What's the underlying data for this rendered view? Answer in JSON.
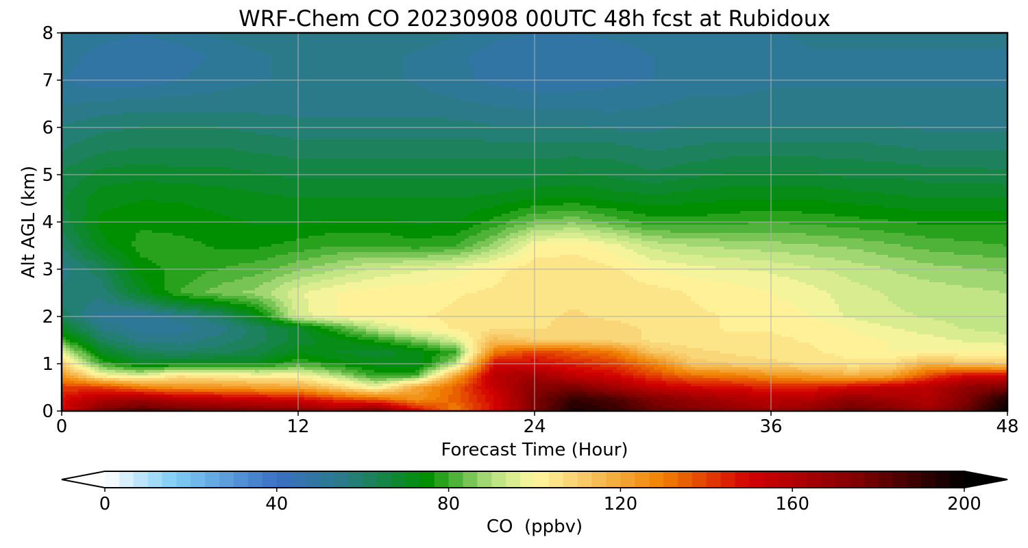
{
  "chart_data": {
    "type": "heatmap",
    "title": "WRF-Chem CO  20230908 00UTC 48h fcst at Rubidoux",
    "xlabel": "Forecast Time (Hour)",
    "ylabel": "Alt AGL (km)",
    "xlim": [
      0,
      48
    ],
    "ylim": [
      0,
      8
    ],
    "xticks": [
      0,
      12,
      24,
      36,
      48
    ],
    "yticks": [
      0,
      1,
      2,
      3,
      4,
      5,
      6,
      7,
      8
    ],
    "grid": true,
    "colorbar": {
      "label": "CO  (ppbv)",
      "range": [
        0,
        200
      ],
      "ticks": [
        0,
        40,
        80,
        120,
        160,
        200
      ],
      "extend": "both",
      "orientation": "horizontal",
      "stops": [
        {
          "v": 0,
          "c": "#ffffff"
        },
        {
          "v": 16,
          "c": "#7fcef5"
        },
        {
          "v": 40,
          "c": "#3a6fc4"
        },
        {
          "v": 55,
          "c": "#2a7a8a"
        },
        {
          "v": 75,
          "c": "#008f00"
        },
        {
          "v": 90,
          "c": "#b4e080"
        },
        {
          "v": 100,
          "c": "#fff8a0"
        },
        {
          "v": 110,
          "c": "#f8d070"
        },
        {
          "v": 130,
          "c": "#f08000"
        },
        {
          "v": 150,
          "c": "#d40000"
        },
        {
          "v": 175,
          "c": "#800000"
        },
        {
          "v": 200,
          "c": "#000000"
        }
      ]
    },
    "times": [
      0,
      2,
      4,
      6,
      8,
      10,
      12,
      14,
      16,
      18,
      20,
      22,
      24,
      26,
      28,
      30,
      32,
      34,
      36,
      38,
      40,
      42,
      44,
      46,
      48
    ],
    "altitudes": [
      0,
      0.25,
      0.5,
      0.75,
      1.0,
      1.25,
      1.5,
      1.75,
      2.0,
      2.5,
      3.0,
      3.5,
      4.0,
      4.5,
      5.0,
      5.5,
      6.0,
      6.5,
      7.0,
      7.5,
      8.0
    ],
    "values": [
      [
        150,
        175,
        185,
        180,
        178,
        175,
        172,
        168,
        175,
        150,
        130,
        150,
        175,
        195,
        190,
        180,
        175,
        170,
        165,
        170,
        180,
        175,
        165,
        180,
        200
      ],
      [
        148,
        160,
        165,
        158,
        155,
        152,
        150,
        140,
        135,
        125,
        135,
        150,
        175,
        190,
        185,
        175,
        168,
        162,
        158,
        160,
        170,
        165,
        160,
        175,
        195
      ],
      [
        140,
        140,
        130,
        125,
        125,
        122,
        120,
        110,
        98,
        120,
        135,
        155,
        172,
        175,
        165,
        155,
        150,
        148,
        145,
        145,
        150,
        155,
        158,
        170,
        175
      ],
      [
        125,
        100,
        95,
        105,
        102,
        100,
        100,
        90,
        78,
        80,
        120,
        158,
        165,
        155,
        150,
        140,
        132,
        130,
        125,
        122,
        118,
        120,
        138,
        150,
        150
      ],
      [
        110,
        80,
        70,
        72,
        72,
        72,
        80,
        75,
        72,
        70,
        90,
        150,
        150,
        145,
        140,
        130,
        112,
        110,
        108,
        106,
        104,
        105,
        118,
        112,
        110
      ],
      [
        95,
        70,
        62,
        60,
        62,
        65,
        72,
        70,
        68,
        72,
        80,
        130,
        140,
        135,
        130,
        112,
        108,
        106,
        104,
        104,
        102,
        100,
        100,
        100,
        100
      ],
      [
        80,
        62,
        55,
        55,
        58,
        62,
        68,
        72,
        78,
        85,
        95,
        115,
        110,
        110,
        108,
        106,
        104,
        104,
        104,
        103,
        101,
        100,
        98,
        96,
        95
      ],
      [
        70,
        56,
        52,
        52,
        55,
        62,
        68,
        80,
        92,
        100,
        104,
        106,
        106,
        108,
        108,
        106,
        104,
        103,
        103,
        102,
        100,
        97,
        95,
        93,
        92
      ],
      [
        62,
        52,
        50,
        55,
        60,
        72,
        95,
        100,
        102,
        103,
        104,
        105,
        106,
        107,
        106,
        105,
        104,
        103,
        102,
        100,
        96,
        94,
        93,
        92,
        91
      ],
      [
        58,
        58,
        70,
        80,
        85,
        88,
        96,
        100,
        102,
        102,
        103,
        104,
        106,
        106,
        106,
        105,
        103,
        102,
        100,
        98,
        95,
        93,
        92,
        91,
        90
      ],
      [
        55,
        62,
        75,
        78,
        80,
        82,
        86,
        90,
        94,
        96,
        98,
        102,
        106,
        106,
        104,
        100,
        98,
        97,
        96,
        94,
        92,
        90,
        88,
        87,
        86
      ],
      [
        60,
        72,
        78,
        78,
        76,
        76,
        78,
        80,
        80,
        78,
        80,
        88,
        100,
        102,
        98,
        92,
        90,
        89,
        88,
        87,
        86,
        84,
        82,
        81,
        80
      ],
      [
        65,
        74,
        76,
        75,
        74,
        73,
        73,
        74,
        74,
        73,
        73,
        78,
        84,
        86,
        82,
        78,
        78,
        79,
        80,
        79,
        78,
        77,
        76,
        76,
        76
      ],
      [
        66,
        72,
        73,
        73,
        72,
        71,
        70,
        70,
        70,
        70,
        70,
        71,
        73,
        74,
        72,
        71,
        72,
        73,
        73,
        73,
        72,
        71,
        70,
        70,
        70
      ],
      [
        64,
        68,
        69,
        68,
        68,
        67,
        66,
        66,
        66,
        66,
        66,
        66,
        66,
        67,
        66,
        64,
        66,
        67,
        67,
        67,
        66,
        66,
        65,
        65,
        64
      ],
      [
        60,
        63,
        64,
        64,
        64,
        63,
        62,
        62,
        62,
        62,
        62,
        62,
        62,
        62,
        62,
        60,
        61,
        62,
        62,
        62,
        62,
        61,
        60,
        60,
        60
      ],
      [
        57,
        59,
        60,
        60,
        60,
        59,
        58,
        58,
        58,
        58,
        58,
        57,
        57,
        57,
        56,
        56,
        57,
        57,
        57,
        57,
        57,
        57,
        56,
        56,
        56
      ],
      [
        53,
        54,
        55,
        55,
        55,
        55,
        55,
        55,
        55,
        55,
        54,
        53,
        52,
        52,
        52,
        53,
        54,
        54,
        54,
        54,
        54,
        54,
        54,
        54,
        54
      ],
      [
        50,
        48,
        48,
        50,
        52,
        53,
        54,
        54,
        54,
        53,
        51,
        49,
        48,
        48,
        49,
        50,
        52,
        52,
        53,
        53,
        53,
        53,
        53,
        53,
        53
      ],
      [
        52,
        48,
        47,
        48,
        51,
        53,
        54,
        54,
        54,
        53,
        51,
        48,
        47,
        47,
        48,
        50,
        52,
        52,
        52,
        53,
        53,
        53,
        53,
        53,
        53
      ],
      [
        54,
        52,
        50,
        52,
        54,
        55,
        55,
        55,
        55,
        55,
        54,
        51,
        50,
        50,
        51,
        52,
        53,
        53,
        53,
        54,
        54,
        54,
        54,
        54,
        54
      ]
    ]
  }
}
